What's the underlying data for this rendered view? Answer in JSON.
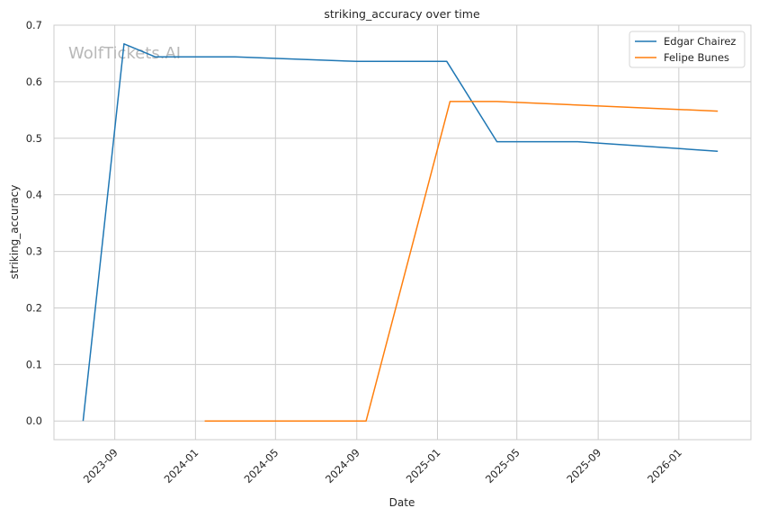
{
  "chart_data": {
    "type": "line",
    "title": "striking_accuracy over time",
    "xlabel": "Date",
    "ylabel": "striking_accuracy",
    "watermark": "WolfTickets.AI",
    "x_ticks": [
      "2023-09",
      "2024-01",
      "2024-05",
      "2024-09",
      "2025-01",
      "2025-05",
      "2025-09",
      "2026-01"
    ],
    "y_ticks": [
      "0.0",
      "0.1",
      "0.2",
      "0.3",
      "0.4",
      "0.5",
      "0.6",
      "0.7"
    ],
    "xlim": [
      "2023-06-01",
      "2026-04-20"
    ],
    "ylim": [
      -0.033,
      0.7
    ],
    "grid": true,
    "legend_position": "top-right",
    "series": [
      {
        "name": "Edgar Chairez",
        "color": "#1f77b4",
        "points": [
          {
            "x": "2023-07-15",
            "y": 0.0
          },
          {
            "x": "2023-09-15",
            "y": 0.667
          },
          {
            "x": "2023-11-01",
            "y": 0.644
          },
          {
            "x": "2024-03-01",
            "y": 0.644
          },
          {
            "x": "2024-09-01",
            "y": 0.636
          },
          {
            "x": "2025-01-15",
            "y": 0.636
          },
          {
            "x": "2025-04-01",
            "y": 0.494
          },
          {
            "x": "2025-08-01",
            "y": 0.494
          },
          {
            "x": "2026-03-01",
            "y": 0.477
          }
        ]
      },
      {
        "name": "Felipe Bunes",
        "color": "#ff7f0e",
        "points": [
          {
            "x": "2024-01-15",
            "y": 0.0
          },
          {
            "x": "2024-09-15",
            "y": 0.0
          },
          {
            "x": "2025-01-20",
            "y": 0.565
          },
          {
            "x": "2025-04-01",
            "y": 0.565
          },
          {
            "x": "2026-03-01",
            "y": 0.548
          }
        ]
      }
    ]
  }
}
